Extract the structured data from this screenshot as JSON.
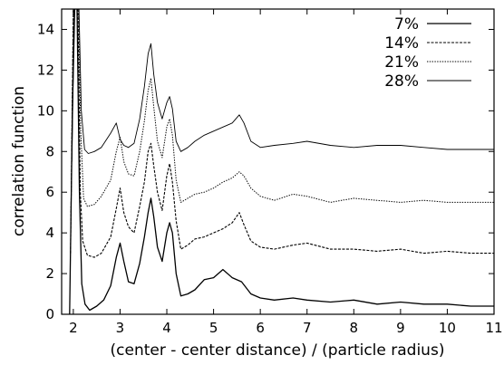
{
  "chart_data": {
    "type": "line",
    "title": "",
    "xlabel": "(center - center distance) / (particle radius)",
    "ylabel": "correlation function",
    "xlim": [
      1.75,
      11
    ],
    "ylim": [
      0,
      15
    ],
    "xticks": [
      2,
      3,
      4,
      5,
      6,
      7,
      8,
      9,
      10,
      11
    ],
    "yticks": [
      0,
      2,
      4,
      6,
      8,
      10,
      12,
      14
    ],
    "grid": false,
    "legend_position": "top-right",
    "series": [
      {
        "name": "7%",
        "style": "solid",
        "x": [
          1.92,
          1.98,
          2.03,
          2.08,
          2.13,
          2.18,
          2.25,
          2.35,
          2.5,
          2.65,
          2.8,
          2.92,
          3.0,
          3.08,
          3.18,
          3.3,
          3.42,
          3.52,
          3.6,
          3.66,
          3.72,
          3.8,
          3.9,
          4.0,
          4.06,
          4.12,
          4.2,
          4.3,
          4.45,
          4.6,
          4.8,
          5.0,
          5.2,
          5.4,
          5.6,
          5.8,
          6.0,
          6.3,
          6.7,
          7.0,
          7.5,
          8.0,
          8.5,
          9.0,
          9.5,
          10.0,
          10.5,
          11.0
        ],
        "y": [
          0.0,
          10.0,
          15.0,
          15.0,
          6.0,
          1.5,
          0.5,
          0.2,
          0.4,
          0.7,
          1.4,
          2.8,
          3.5,
          2.6,
          1.6,
          1.5,
          2.5,
          3.8,
          5.0,
          5.7,
          4.8,
          3.3,
          2.6,
          4.0,
          4.5,
          4.0,
          2.0,
          0.9,
          1.0,
          1.2,
          1.7,
          1.8,
          2.2,
          1.8,
          1.6,
          1.0,
          0.8,
          0.7,
          0.8,
          0.7,
          0.6,
          0.7,
          0.5,
          0.6,
          0.5,
          0.5,
          0.4,
          0.4
        ]
      },
      {
        "name": "14%",
        "style": "dashed",
        "x": [
          1.94,
          2.0,
          2.05,
          2.1,
          2.15,
          2.2,
          2.3,
          2.45,
          2.6,
          2.8,
          2.92,
          3.0,
          3.08,
          3.18,
          3.3,
          3.42,
          3.52,
          3.6,
          3.66,
          3.72,
          3.8,
          3.9,
          4.0,
          4.06,
          4.12,
          4.2,
          4.3,
          4.45,
          4.6,
          4.8,
          5.0,
          5.2,
          5.4,
          5.55,
          5.65,
          5.8,
          6.0,
          6.3,
          6.7,
          7.0,
          7.5,
          8.0,
          8.5,
          9.0,
          9.5,
          10.0,
          10.5,
          11.0
        ],
        "y": [
          3.0,
          15.0,
          15.0,
          15.0,
          6.0,
          3.6,
          2.9,
          2.8,
          3.0,
          3.8,
          5.2,
          6.2,
          5.0,
          4.3,
          4.0,
          5.3,
          6.5,
          8.0,
          8.4,
          7.3,
          6.0,
          5.1,
          6.8,
          7.4,
          6.5,
          4.6,
          3.2,
          3.4,
          3.7,
          3.8,
          4.0,
          4.2,
          4.5,
          5.0,
          4.4,
          3.6,
          3.3,
          3.2,
          3.4,
          3.5,
          3.2,
          3.2,
          3.1,
          3.2,
          3.0,
          3.1,
          3.0,
          3.0
        ]
      },
      {
        "name": "21%",
        "style": "dotted",
        "x": [
          1.95,
          2.0,
          2.06,
          2.11,
          2.16,
          2.22,
          2.3,
          2.45,
          2.6,
          2.8,
          2.92,
          3.0,
          3.08,
          3.18,
          3.3,
          3.42,
          3.52,
          3.6,
          3.66,
          3.72,
          3.8,
          3.9,
          4.0,
          4.06,
          4.12,
          4.2,
          4.3,
          4.45,
          4.6,
          4.8,
          5.0,
          5.2,
          5.4,
          5.55,
          5.65,
          5.8,
          6.0,
          6.3,
          6.7,
          7.0,
          7.5,
          8.0,
          8.5,
          9.0,
          9.5,
          10.0,
          10.5,
          11.0
        ],
        "y": [
          5.0,
          15.0,
          15.0,
          15.0,
          9.0,
          5.7,
          5.3,
          5.4,
          5.8,
          6.6,
          8.0,
          8.7,
          7.5,
          6.9,
          6.8,
          8.0,
          9.5,
          11.0,
          11.6,
          10.2,
          8.5,
          7.7,
          9.2,
          9.6,
          8.8,
          6.6,
          5.5,
          5.7,
          5.9,
          6.0,
          6.2,
          6.5,
          6.7,
          7.0,
          6.8,
          6.2,
          5.8,
          5.6,
          5.9,
          5.8,
          5.5,
          5.7,
          5.6,
          5.5,
          5.6,
          5.5,
          5.5,
          5.5
        ]
      },
      {
        "name": "28%",
        "style": "thin",
        "x": [
          1.97,
          2.02,
          2.07,
          2.12,
          2.17,
          2.24,
          2.32,
          2.45,
          2.6,
          2.8,
          2.92,
          3.0,
          3.08,
          3.18,
          3.3,
          3.42,
          3.52,
          3.6,
          3.66,
          3.72,
          3.8,
          3.9,
          4.0,
          4.06,
          4.12,
          4.2,
          4.3,
          4.45,
          4.6,
          4.8,
          5.0,
          5.2,
          5.4,
          5.55,
          5.65,
          5.8,
          6.0,
          6.3,
          6.7,
          7.0,
          7.5,
          8.0,
          8.5,
          9.0,
          9.5,
          10.0,
          10.5,
          11.0
        ],
        "y": [
          7.5,
          15.0,
          15.0,
          15.0,
          10.0,
          8.1,
          7.9,
          8.0,
          8.2,
          8.9,
          9.4,
          8.6,
          8.3,
          8.2,
          8.4,
          9.6,
          11.2,
          12.8,
          13.3,
          11.8,
          10.4,
          9.6,
          10.4,
          10.7,
          10.1,
          8.5,
          8.0,
          8.2,
          8.5,
          8.8,
          9.0,
          9.2,
          9.4,
          9.8,
          9.4,
          8.5,
          8.2,
          8.3,
          8.4,
          8.5,
          8.3,
          8.2,
          8.3,
          8.3,
          8.2,
          8.1,
          8.1,
          8.1
        ]
      }
    ]
  }
}
